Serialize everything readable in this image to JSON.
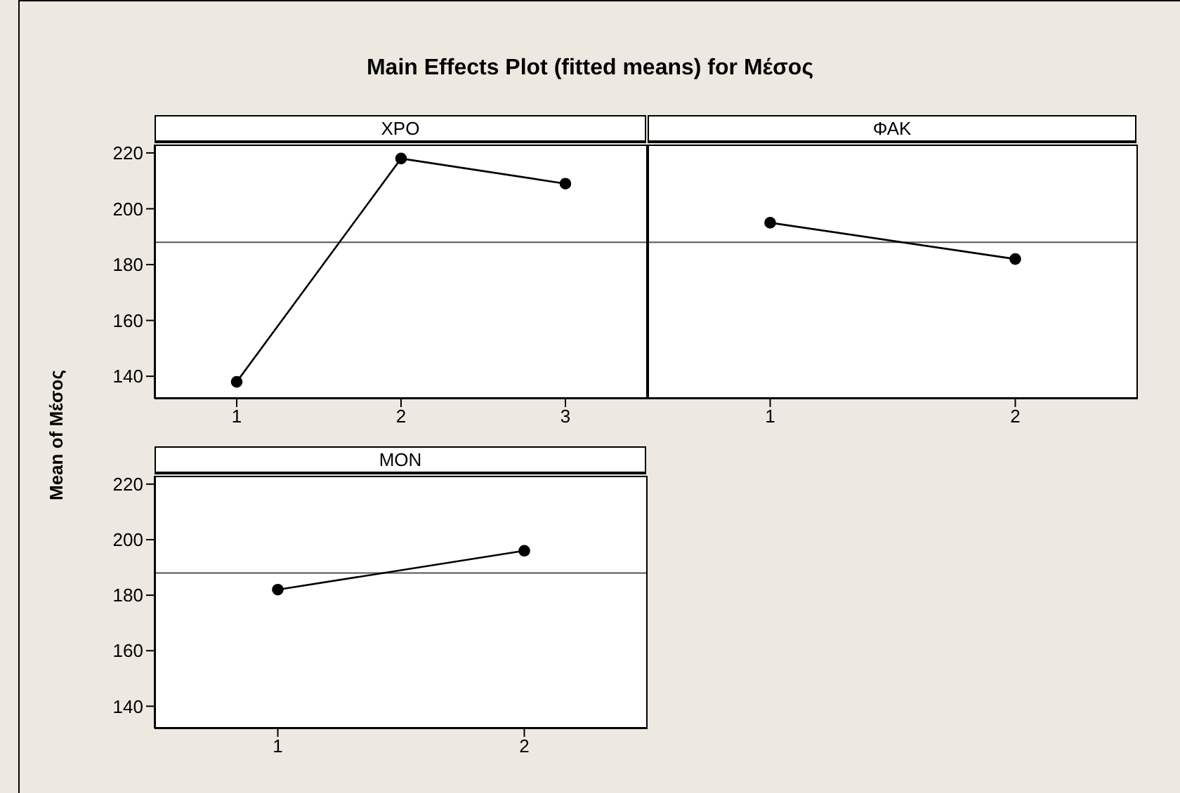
{
  "chart_data": [
    {
      "type": "line",
      "title": "Main Effects Plot (fitted means) for Μέσος",
      "ylabel": "Mean of Μέσος",
      "xlabel": "XPO",
      "categories": [
        "1",
        "2",
        "3"
      ],
      "values": [
        138,
        218,
        209
      ],
      "color": "#000000",
      "marker": "circle",
      "ylim": [
        132,
        223
      ],
      "yticks": [
        140,
        160,
        180,
        200,
        220
      ],
      "grid": false,
      "ref_lines": [
        {
          "axis": "y",
          "value": 188,
          "color": "#555555"
        }
      ]
    },
    {
      "type": "line",
      "xlabel": "ΦΑΚ",
      "categories": [
        "1",
        "2"
      ],
      "values": [
        195,
        182
      ],
      "color": "#000000",
      "marker": "circle",
      "ylim": [
        132,
        223
      ],
      "yticks": [
        140,
        160,
        180,
        200,
        220
      ],
      "grid": false,
      "tick_labels": "x",
      "ref_lines": [
        {
          "axis": "y",
          "value": 188,
          "color": "#555555"
        }
      ]
    },
    {
      "type": "line",
      "xlabel": "MON",
      "categories": [
        "1",
        "2"
      ],
      "values": [
        182,
        196
      ],
      "color": "#000000",
      "marker": "circle",
      "ylim": [
        132,
        223
      ],
      "yticks": [
        140,
        160,
        180,
        200,
        220
      ],
      "grid": false,
      "ref_lines": [
        {
          "axis": "y",
          "value": 188,
          "color": "#555555"
        }
      ]
    }
  ]
}
